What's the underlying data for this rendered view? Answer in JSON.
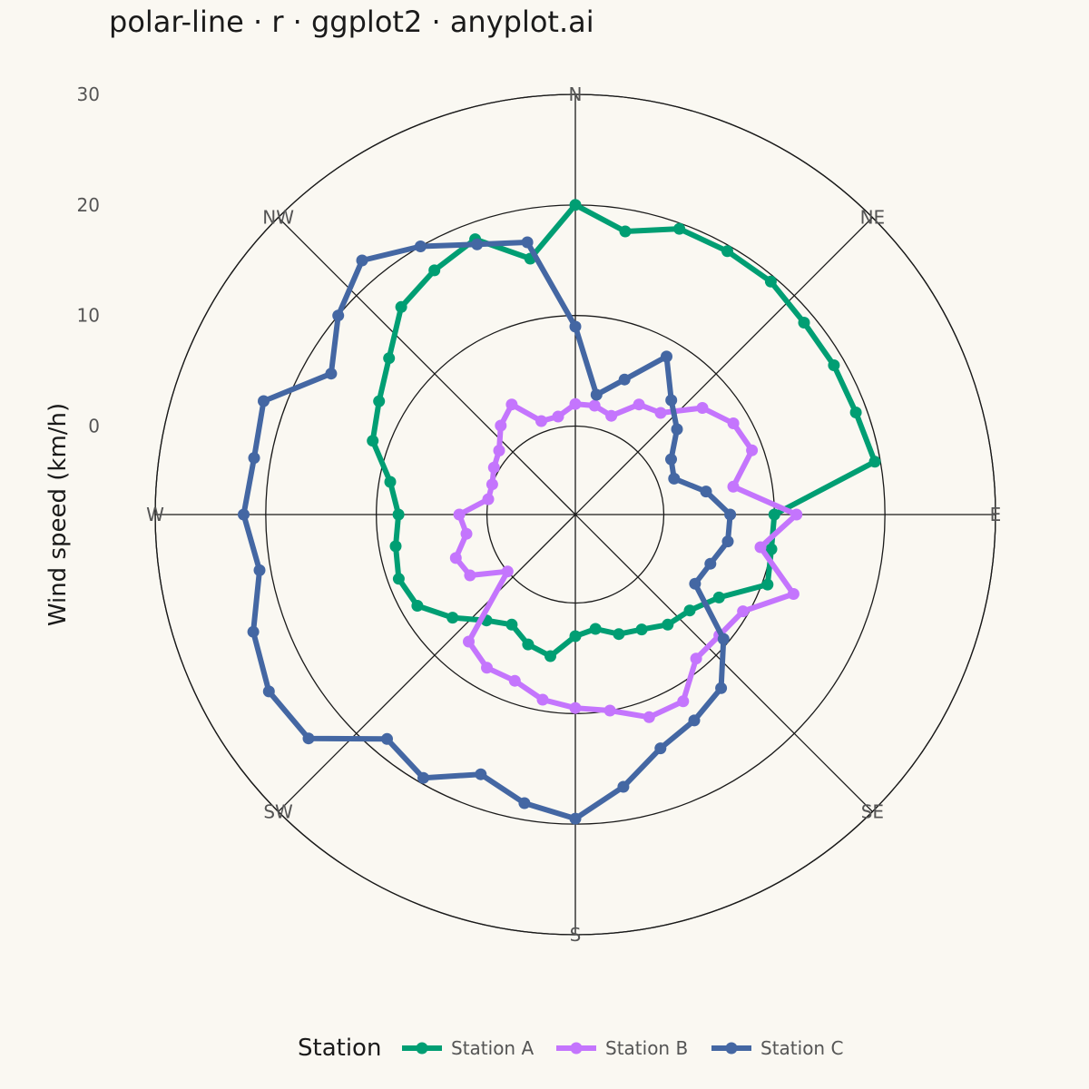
{
  "title": "polar-line · r · ggplot2 · anyplot.ai",
  "chart_data": {
    "type": "line",
    "coord": "polar",
    "title": "polar-line · r · ggplot2 · anyplot.ai",
    "ylabel": "Wind speed (km/h)",
    "ylim": [
      -8,
      30
    ],
    "y_ticks": [
      0,
      10,
      20,
      30
    ],
    "direction_labels": [
      "N",
      "NE",
      "E",
      "SE",
      "S",
      "SW",
      "W",
      "NW"
    ],
    "direction_angles": [
      0,
      45,
      90,
      135,
      180,
      225,
      270,
      315
    ],
    "x_unit": "degrees clockwise from north",
    "grid": true,
    "legend": {
      "title": "Station",
      "position": "bottom",
      "entries": [
        "Station A",
        "Station B",
        "Station C"
      ]
    },
    "series": [
      {
        "name": "Station A",
        "color": "#009E73",
        "points": [
          [
            0,
            20.0
          ],
          [
            10,
            18.0
          ],
          [
            20,
            19.5
          ],
          [
            30,
            19.5
          ],
          [
            40,
            19.5
          ],
          [
            50,
            19.0
          ],
          [
            60,
            19.0
          ],
          [
            70,
            19.0
          ],
          [
            80,
            19.5
          ],
          [
            90,
            10.0
          ],
          [
            100,
            10.0
          ],
          [
            110,
            10.5
          ],
          [
            120,
            7.0
          ],
          [
            130,
            5.5
          ],
          [
            140,
            5.0
          ],
          [
            150,
            4.0
          ],
          [
            160,
            3.5
          ],
          [
            170,
            2.5
          ],
          [
            180,
            3.0
          ],
          [
            190,
            5.0
          ],
          [
            200,
            4.5
          ],
          [
            210,
            3.5
          ],
          [
            220,
            4.5
          ],
          [
            230,
            6.5
          ],
          [
            240,
            8.5
          ],
          [
            250,
            9.0
          ],
          [
            260,
            8.5
          ],
          [
            270,
            8.0
          ],
          [
            280,
            9.0
          ],
          [
            290,
            11.5
          ],
          [
            300,
            12.5
          ],
          [
            310,
            14.0
          ],
          [
            320,
            16.5
          ],
          [
            330,
            17.5
          ],
          [
            340,
            18.5
          ],
          [
            350,
            15.5
          ]
        ]
      },
      {
        "name": "Station B",
        "color": "#C475FD",
        "points": [
          [
            0,
            2.0
          ],
          [
            10,
            2.0
          ],
          [
            20,
            1.5
          ],
          [
            30,
            3.5
          ],
          [
            40,
            4.0
          ],
          [
            50,
            7.0
          ],
          [
            60,
            8.5
          ],
          [
            70,
            9.0
          ],
          [
            80,
            6.5
          ],
          [
            90,
            12.0
          ],
          [
            100,
            9.0
          ],
          [
            110,
            13.0
          ],
          [
            120,
            9.5
          ],
          [
            130,
            9.0
          ],
          [
            140,
            9.0
          ],
          [
            150,
            11.5
          ],
          [
            160,
            11.5
          ],
          [
            170,
            10.0
          ],
          [
            180,
            9.5
          ],
          [
            190,
            9.0
          ],
          [
            200,
            8.0
          ],
          [
            210,
            8.0
          ],
          [
            220,
            7.0
          ],
          [
            230,
            0.0
          ],
          [
            240,
            3.0
          ],
          [
            250,
            3.5
          ],
          [
            260,
            2.0
          ],
          [
            270,
            2.5
          ],
          [
            280,
            0.0
          ],
          [
            290,
            0.0
          ],
          [
            300,
            0.5
          ],
          [
            310,
            1.0
          ],
          [
            320,
            2.5
          ],
          [
            330,
            3.5
          ],
          [
            340,
            1.0
          ],
          [
            350,
            1.0
          ]
        ]
      },
      {
        "name": "Station C",
        "color": "#4467A3",
        "points": [
          [
            0,
            9.0
          ],
          [
            10,
            3.0
          ],
          [
            20,
            5.0
          ],
          [
            30,
            8.5
          ],
          [
            40,
            5.5
          ],
          [
            50,
            4.0
          ],
          [
            60,
            2.0
          ],
          [
            70,
            1.5
          ],
          [
            80,
            4.0
          ],
          [
            90,
            6.0
          ],
          [
            100,
            6.0
          ],
          [
            110,
            5.0
          ],
          [
            120,
            4.5
          ],
          [
            130,
            9.5
          ],
          [
            140,
            12.5
          ],
          [
            150,
            13.5
          ],
          [
            160,
            14.5
          ],
          [
            170,
            17.0
          ],
          [
            180,
            19.5
          ],
          [
            190,
            18.5
          ],
          [
            200,
            17.0
          ],
          [
            210,
            19.5
          ],
          [
            220,
            18.5
          ],
          [
            230,
            23.5
          ],
          [
            240,
            24.0
          ],
          [
            250,
            23.0
          ],
          [
            260,
            21.0
          ],
          [
            270,
            22.0
          ],
          [
            280,
            21.5
          ],
          [
            290,
            22.0
          ],
          [
            300,
            17.5
          ],
          [
            310,
            20.0
          ],
          [
            320,
            22.0
          ],
          [
            330,
            20.0
          ],
          [
            340,
            18.0
          ],
          [
            350,
            17.0
          ]
        ]
      }
    ]
  }
}
